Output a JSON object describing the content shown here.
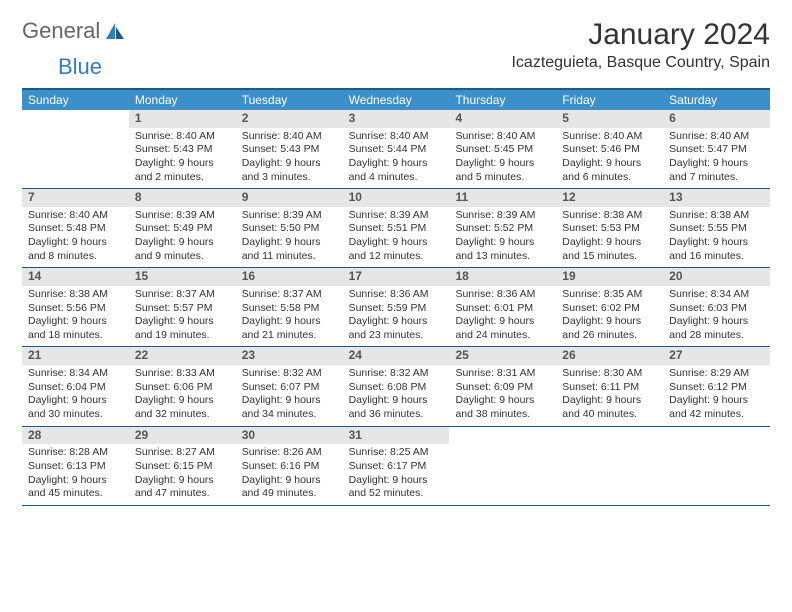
{
  "logo": {
    "text1": "General",
    "text2": "Blue"
  },
  "title": "January 2024",
  "location": "Icazteguieta, Basque Country, Spain",
  "colors": {
    "header_bg": "#3d8fc9",
    "header_text": "#ffffff",
    "border": "#1a5a8a",
    "daynum_bg": "#e6e6e6",
    "daynum_text": "#555555",
    "body_text": "#333333",
    "logo_gray": "#666666",
    "logo_blue": "#2f7fbf"
  },
  "weekdays": [
    "Sunday",
    "Monday",
    "Tuesday",
    "Wednesday",
    "Thursday",
    "Friday",
    "Saturday"
  ],
  "weeks": [
    [
      {
        "n": "",
        "sr": "",
        "ss": "",
        "dl": ""
      },
      {
        "n": "1",
        "sr": "Sunrise: 8:40 AM",
        "ss": "Sunset: 5:43 PM",
        "dl": "Daylight: 9 hours and 2 minutes."
      },
      {
        "n": "2",
        "sr": "Sunrise: 8:40 AM",
        "ss": "Sunset: 5:43 PM",
        "dl": "Daylight: 9 hours and 3 minutes."
      },
      {
        "n": "3",
        "sr": "Sunrise: 8:40 AM",
        "ss": "Sunset: 5:44 PM",
        "dl": "Daylight: 9 hours and 4 minutes."
      },
      {
        "n": "4",
        "sr": "Sunrise: 8:40 AM",
        "ss": "Sunset: 5:45 PM",
        "dl": "Daylight: 9 hours and 5 minutes."
      },
      {
        "n": "5",
        "sr": "Sunrise: 8:40 AM",
        "ss": "Sunset: 5:46 PM",
        "dl": "Daylight: 9 hours and 6 minutes."
      },
      {
        "n": "6",
        "sr": "Sunrise: 8:40 AM",
        "ss": "Sunset: 5:47 PM",
        "dl": "Daylight: 9 hours and 7 minutes."
      }
    ],
    [
      {
        "n": "7",
        "sr": "Sunrise: 8:40 AM",
        "ss": "Sunset: 5:48 PM",
        "dl": "Daylight: 9 hours and 8 minutes."
      },
      {
        "n": "8",
        "sr": "Sunrise: 8:39 AM",
        "ss": "Sunset: 5:49 PM",
        "dl": "Daylight: 9 hours and 9 minutes."
      },
      {
        "n": "9",
        "sr": "Sunrise: 8:39 AM",
        "ss": "Sunset: 5:50 PM",
        "dl": "Daylight: 9 hours and 11 minutes."
      },
      {
        "n": "10",
        "sr": "Sunrise: 8:39 AM",
        "ss": "Sunset: 5:51 PM",
        "dl": "Daylight: 9 hours and 12 minutes."
      },
      {
        "n": "11",
        "sr": "Sunrise: 8:39 AM",
        "ss": "Sunset: 5:52 PM",
        "dl": "Daylight: 9 hours and 13 minutes."
      },
      {
        "n": "12",
        "sr": "Sunrise: 8:38 AM",
        "ss": "Sunset: 5:53 PM",
        "dl": "Daylight: 9 hours and 15 minutes."
      },
      {
        "n": "13",
        "sr": "Sunrise: 8:38 AM",
        "ss": "Sunset: 5:55 PM",
        "dl": "Daylight: 9 hours and 16 minutes."
      }
    ],
    [
      {
        "n": "14",
        "sr": "Sunrise: 8:38 AM",
        "ss": "Sunset: 5:56 PM",
        "dl": "Daylight: 9 hours and 18 minutes."
      },
      {
        "n": "15",
        "sr": "Sunrise: 8:37 AM",
        "ss": "Sunset: 5:57 PM",
        "dl": "Daylight: 9 hours and 19 minutes."
      },
      {
        "n": "16",
        "sr": "Sunrise: 8:37 AM",
        "ss": "Sunset: 5:58 PM",
        "dl": "Daylight: 9 hours and 21 minutes."
      },
      {
        "n": "17",
        "sr": "Sunrise: 8:36 AM",
        "ss": "Sunset: 5:59 PM",
        "dl": "Daylight: 9 hours and 23 minutes."
      },
      {
        "n": "18",
        "sr": "Sunrise: 8:36 AM",
        "ss": "Sunset: 6:01 PM",
        "dl": "Daylight: 9 hours and 24 minutes."
      },
      {
        "n": "19",
        "sr": "Sunrise: 8:35 AM",
        "ss": "Sunset: 6:02 PM",
        "dl": "Daylight: 9 hours and 26 minutes."
      },
      {
        "n": "20",
        "sr": "Sunrise: 8:34 AM",
        "ss": "Sunset: 6:03 PM",
        "dl": "Daylight: 9 hours and 28 minutes."
      }
    ],
    [
      {
        "n": "21",
        "sr": "Sunrise: 8:34 AM",
        "ss": "Sunset: 6:04 PM",
        "dl": "Daylight: 9 hours and 30 minutes."
      },
      {
        "n": "22",
        "sr": "Sunrise: 8:33 AM",
        "ss": "Sunset: 6:06 PM",
        "dl": "Daylight: 9 hours and 32 minutes."
      },
      {
        "n": "23",
        "sr": "Sunrise: 8:32 AM",
        "ss": "Sunset: 6:07 PM",
        "dl": "Daylight: 9 hours and 34 minutes."
      },
      {
        "n": "24",
        "sr": "Sunrise: 8:32 AM",
        "ss": "Sunset: 6:08 PM",
        "dl": "Daylight: 9 hours and 36 minutes."
      },
      {
        "n": "25",
        "sr": "Sunrise: 8:31 AM",
        "ss": "Sunset: 6:09 PM",
        "dl": "Daylight: 9 hours and 38 minutes."
      },
      {
        "n": "26",
        "sr": "Sunrise: 8:30 AM",
        "ss": "Sunset: 6:11 PM",
        "dl": "Daylight: 9 hours and 40 minutes."
      },
      {
        "n": "27",
        "sr": "Sunrise: 8:29 AM",
        "ss": "Sunset: 6:12 PM",
        "dl": "Daylight: 9 hours and 42 minutes."
      }
    ],
    [
      {
        "n": "28",
        "sr": "Sunrise: 8:28 AM",
        "ss": "Sunset: 6:13 PM",
        "dl": "Daylight: 9 hours and 45 minutes."
      },
      {
        "n": "29",
        "sr": "Sunrise: 8:27 AM",
        "ss": "Sunset: 6:15 PM",
        "dl": "Daylight: 9 hours and 47 minutes."
      },
      {
        "n": "30",
        "sr": "Sunrise: 8:26 AM",
        "ss": "Sunset: 6:16 PM",
        "dl": "Daylight: 9 hours and 49 minutes."
      },
      {
        "n": "31",
        "sr": "Sunrise: 8:25 AM",
        "ss": "Sunset: 6:17 PM",
        "dl": "Daylight: 9 hours and 52 minutes."
      },
      {
        "n": "",
        "sr": "",
        "ss": "",
        "dl": ""
      },
      {
        "n": "",
        "sr": "",
        "ss": "",
        "dl": ""
      },
      {
        "n": "",
        "sr": "",
        "ss": "",
        "dl": ""
      }
    ]
  ]
}
